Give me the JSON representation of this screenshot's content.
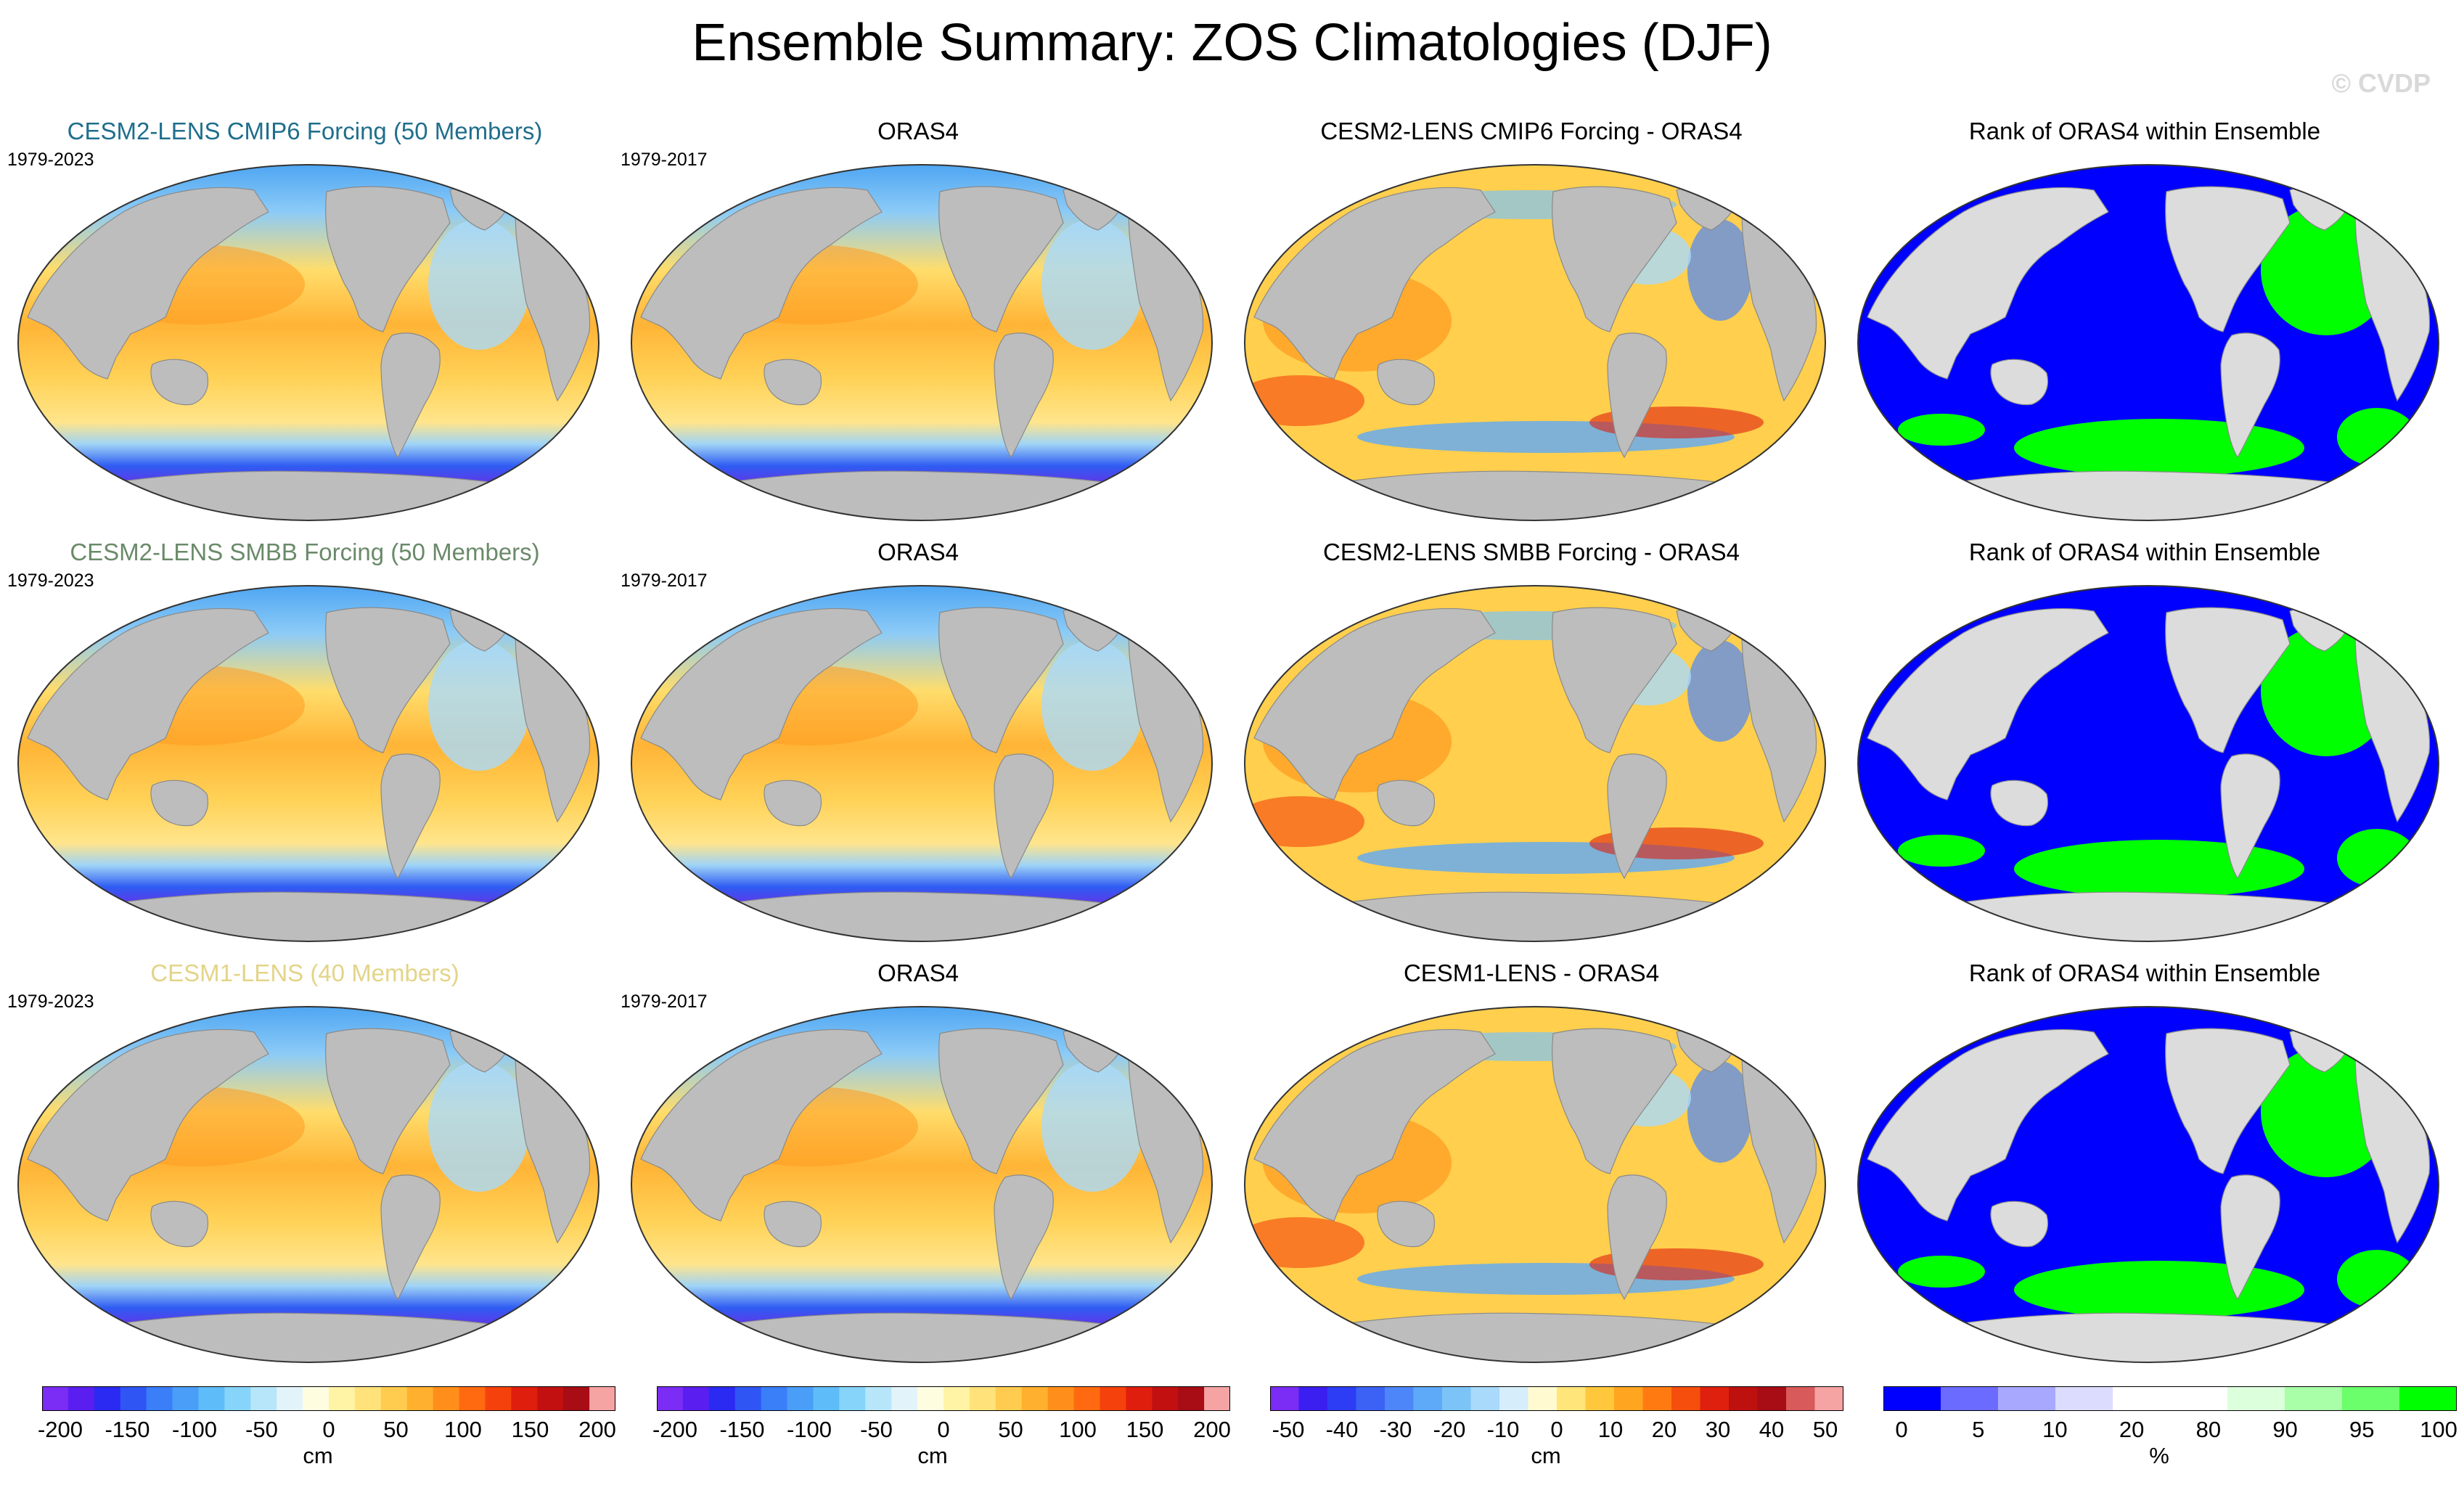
{
  "title": "Ensemble Summary: ZOS Climatologies (DJF)",
  "watermark": "© CVDP",
  "rows": [
    {
      "ensemble_title": "CESM2-LENS CMIP6 Forcing (50 Members)",
      "ensemble_title_color": "#1f6e8c",
      "ensemble_years": "1979-2023",
      "obs_title": "ORAS4",
      "obs_years": "1979-2017",
      "diff_title": "CESM2-LENS CMIP6 Forcing - ORAS4",
      "rank_title": "Rank of ORAS4 within Ensemble"
    },
    {
      "ensemble_title": "CESM2-LENS SMBB Forcing (50 Members)",
      "ensemble_title_color": "#6a8a6a",
      "ensemble_years": "1979-2023",
      "obs_title": "ORAS4",
      "obs_years": "1979-2017",
      "diff_title": "CESM2-LENS SMBB Forcing - ORAS4",
      "rank_title": "Rank of ORAS4 within Ensemble"
    },
    {
      "ensemble_title": "CESM1-LENS (40 Members)",
      "ensemble_title_color": "#e3d488",
      "ensemble_years": "1979-2023",
      "obs_title": "ORAS4",
      "obs_years": "1979-2017",
      "diff_title": "CESM1-LENS - ORAS4",
      "rank_title": "Rank of ORAS4 within Ensemble"
    }
  ],
  "colorbars": {
    "climatology": {
      "ticks": [
        "-200",
        "-150",
        "-100",
        "-50",
        "0",
        "50",
        "100",
        "150",
        "200"
      ],
      "unit": "cm",
      "colors": [
        "#7b2cf5",
        "#5a1ff0",
        "#2a2af2",
        "#2f55f5",
        "#3a7ef8",
        "#4a9ef8",
        "#5ebcf8",
        "#86d4fa",
        "#b7e6fb",
        "#e3f3fa",
        "#fffde0",
        "#fff3a5",
        "#ffe27a",
        "#ffcc4f",
        "#ffb02e",
        "#ff8f1a",
        "#ff6a10",
        "#f5420c",
        "#e01e0e",
        "#c21010",
        "#a80c14",
        "#f5a3a3"
      ]
    },
    "difference": {
      "ticks": [
        "-50",
        "-40",
        "-30",
        "-20",
        "-10",
        "0",
        "10",
        "20",
        "30",
        "40",
        "50"
      ],
      "unit": "cm",
      "colors": [
        "#7b2cf5",
        "#3b1ff0",
        "#2d3df5",
        "#3b62f5",
        "#4d86f8",
        "#5ea9f8",
        "#7cc3f8",
        "#a9d9fb",
        "#d6edfb",
        "#fffad0",
        "#ffe57a",
        "#ffc83c",
        "#ffa51f",
        "#ff7b12",
        "#f54e0d",
        "#e0200e",
        "#bf1010",
        "#a80c14",
        "#d95a5a",
        "#f5a3a3"
      ]
    },
    "rank": {
      "ticks": [
        "0",
        "5",
        "10",
        "20",
        "80",
        "90",
        "95",
        "100"
      ],
      "unit": "%",
      "colors": [
        "#0000ff",
        "#6b6bff",
        "#a8a8ff",
        "#dcdcff",
        "#ffffff",
        "#ffffff",
        "#dcffdc",
        "#a8ffa8",
        "#6bff6b",
        "#00ff00"
      ]
    }
  }
}
